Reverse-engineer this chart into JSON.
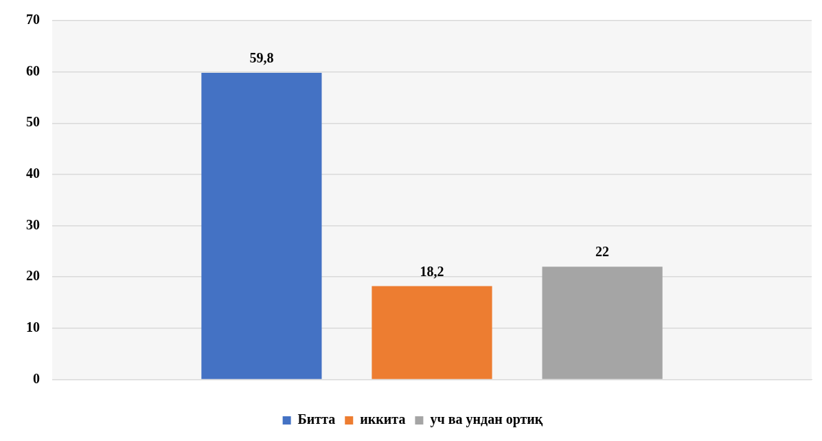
{
  "chart_data": {
    "type": "bar",
    "categories": [
      null
    ],
    "series": [
      {
        "name": "Битта",
        "color": "#4472c4",
        "values": [
          59.8
        ],
        "value_labels": [
          "59,8"
        ]
      },
      {
        "name": "иккита",
        "color": "#ed7d31",
        "values": [
          18.2
        ],
        "value_labels": [
          "18,2"
        ]
      },
      {
        "name": "уч ва ундан ортиқ",
        "color": "#a5a5a5",
        "values": [
          22
        ],
        "value_labels": [
          "22"
        ]
      }
    ],
    "ylim": [
      0,
      70
    ],
    "yticks": [
      0,
      10,
      20,
      30,
      40,
      50,
      60,
      70
    ],
    "grid": "y",
    "legend": "bottom"
  }
}
